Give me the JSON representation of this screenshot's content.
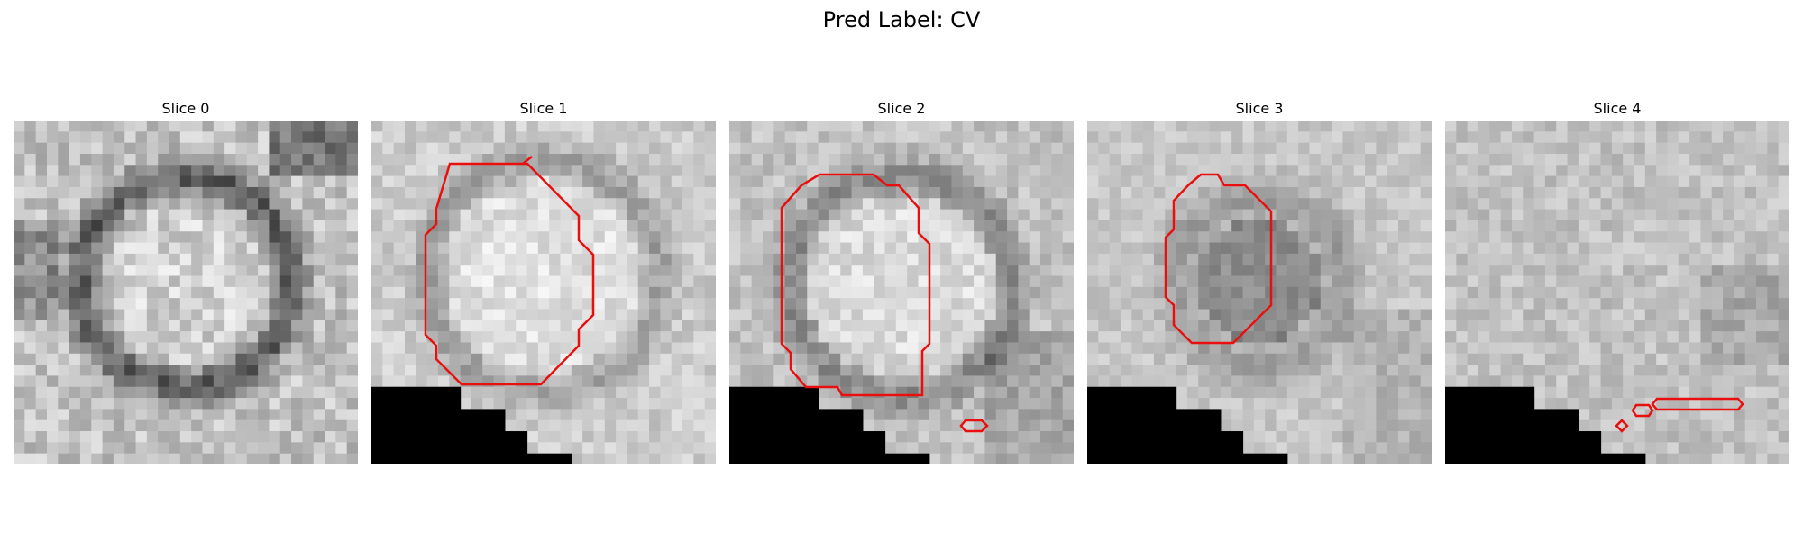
{
  "title": "Pred Label: CV",
  "panels": [
    {
      "label": "Slice 0"
    },
    {
      "label": "Slice 1"
    },
    {
      "label": "Slice 2"
    },
    {
      "label": "Slice 3"
    },
    {
      "label": "Slice 4"
    }
  ],
  "colors": {
    "contour": "#e8100f",
    "mask": "#000000",
    "background": "#ffffff"
  }
}
